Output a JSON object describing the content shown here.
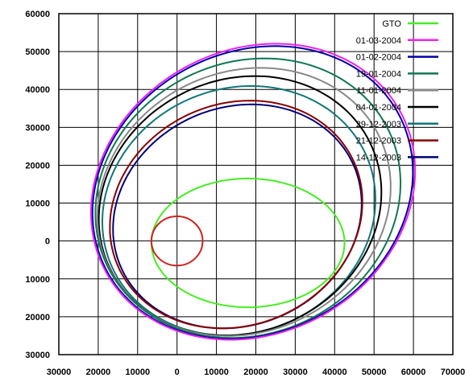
{
  "chart_data": {
    "type": "line",
    "title": "",
    "xlabel": "",
    "ylabel": "",
    "xlim": [
      -30000,
      70000
    ],
    "ylim": [
      -30000,
      60000
    ],
    "xticks": [
      -30000,
      -20000,
      -10000,
      0,
      10000,
      20000,
      30000,
      40000,
      50000,
      60000,
      70000
    ],
    "xtick_labels": [
      "30000",
      "20000",
      "10000",
      "0",
      "10000",
      "20000",
      "30000",
      "40000",
      "50000",
      "60000",
      "70000"
    ],
    "yticks": [
      60000,
      50000,
      40000,
      30000,
      20000,
      10000,
      0,
      -10000,
      -20000,
      -30000
    ],
    "ytick_labels": [
      "60000",
      "50000",
      "40000",
      "30000",
      "20000",
      "10000",
      "0",
      "10000",
      "20000",
      "30000"
    ],
    "grid": true,
    "legend_position": "top-right",
    "circle": {
      "name": "",
      "color": "#cc2222",
      "center": [
        0,
        0
      ],
      "radius": 6500
    },
    "series": [
      {
        "name": "GTO",
        "color": "#44ee22",
        "cx": 18000,
        "cy": -500,
        "rx": 24500,
        "ry": 17000,
        "rot": 0
      },
      {
        "name": "01-03-2004",
        "color": "#ee22ee",
        "cx": 19300,
        "cy": 13000,
        "rx": 43000,
        "ry": 37000,
        "rot": 35
      },
      {
        "name": "01-02-2004",
        "color": "#0000aa",
        "cx": 19200,
        "cy": 12800,
        "rx": 42500,
        "ry": 36600,
        "rot": 35
      },
      {
        "name": "19-01-2004",
        "color": "#117755",
        "cx": 18000,
        "cy": 11300,
        "rx": 40000,
        "ry": 35500,
        "rot": 33
      },
      {
        "name": "11-01-2004",
        "color": "#888888",
        "cx": 17000,
        "cy": 10300,
        "rx": 38500,
        "ry": 34000,
        "rot": 33
      },
      {
        "name": "04-01-2004",
        "color": "#000000",
        "cx": 16000,
        "cy": 9300,
        "rx": 37000,
        "ry": 33000,
        "rot": 33
      },
      {
        "name": "29-12-2003",
        "color": "#117777",
        "cx": 15700,
        "cy": 8000,
        "rx": 35500,
        "ry": 32000,
        "rot": 30
      },
      {
        "name": "21-12-2003",
        "color": "#880000",
        "cx": 15000,
        "cy": 7000,
        "rx": 33000,
        "ry": 29000,
        "rot": 30
      },
      {
        "name": "14-12-2003",
        "color": "#000077",
        "cx": 15300,
        "cy": 6500,
        "rx": 32500,
        "ry": 28500,
        "rot": 30
      }
    ]
  }
}
